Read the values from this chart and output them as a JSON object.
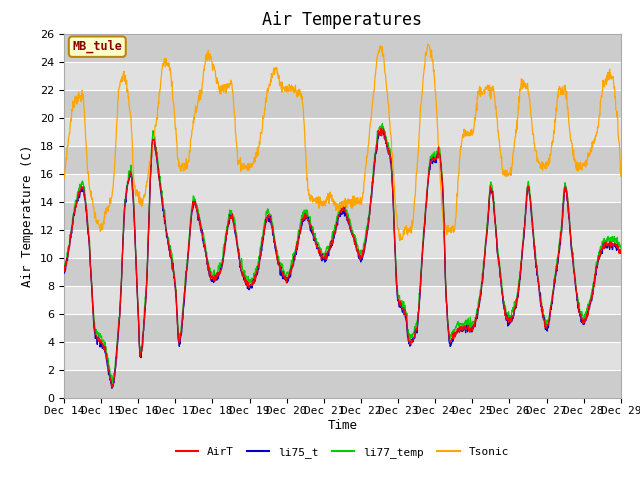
{
  "title": "Air Temperatures",
  "xlabel": "Time",
  "ylabel": "Air Temperature (C)",
  "ylim": [
    0,
    26
  ],
  "annotation": "MB_tule",
  "xtick_labels": [
    "Dec 14",
    "Dec 15",
    "Dec 16",
    "Dec 17",
    "Dec 18",
    "Dec 19",
    "Dec 20",
    "Dec 21",
    "Dec 22",
    "Dec 23",
    "Dec 24",
    "Dec 25",
    "Dec 26",
    "Dec 27",
    "Dec 28",
    "Dec 29"
  ],
  "legend_labels": [
    "AirT",
    "li75_t",
    "li77_temp",
    "Tsonic"
  ],
  "line_colors": [
    "#ff0000",
    "#0000cc",
    "#00cc00",
    "#ffa500"
  ],
  "background_color": "#e8e8e8",
  "band_light": "#e0e0e0",
  "band_dark": "#cccccc",
  "title_fontsize": 12,
  "axis_label_fontsize": 9,
  "tick_fontsize": 8
}
